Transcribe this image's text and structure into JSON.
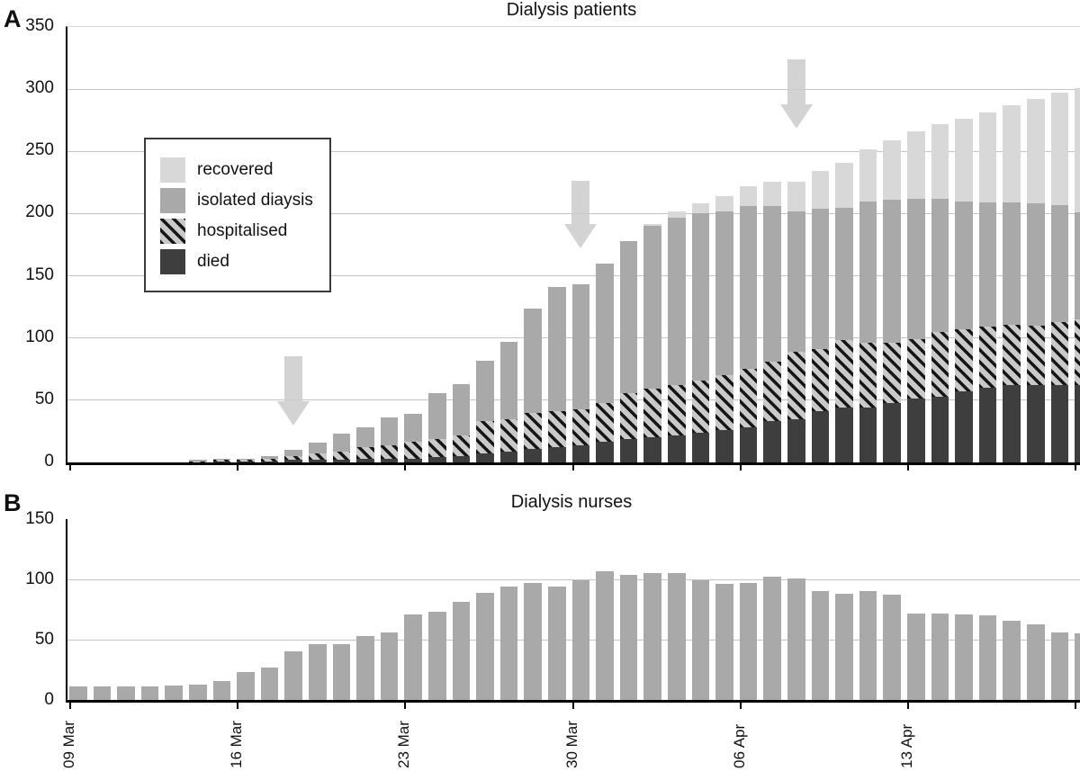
{
  "panels": {
    "a_label": "A",
    "b_label": "B"
  },
  "colors": {
    "recovered": "#d8d8d8",
    "isolated": "#a9a9a9",
    "hospitalised_bg": "#c9c9c9",
    "hospitalised_stripe": "#161616",
    "died": "#3e3e3e",
    "nurses_bar": "#a9a9a9",
    "arrow": "#cdcdcd",
    "gridline": "#c3c3c3",
    "axis": "#000000"
  },
  "chart_data": [
    {
      "type": "bar",
      "subtype": "stacked",
      "panel": "A",
      "title": "Dialysis patients",
      "ylim": [
        0,
        350
      ],
      "yticks": [
        0,
        50,
        100,
        150,
        200,
        250,
        300,
        350
      ],
      "grid_ticks": [
        50,
        100,
        150,
        200,
        250,
        300
      ],
      "grid": true,
      "legend_position": "upper-left-inside",
      "x": [
        "09 Mar",
        "10 Mar",
        "11 Mar",
        "12 Mar",
        "13 Mar",
        "14 Mar",
        "15 Mar",
        "16 Mar",
        "17 Mar",
        "18 Mar",
        "19 Mar",
        "20 Mar",
        "21 Mar",
        "22 Mar",
        "23 Mar",
        "24 Mar",
        "25 Mar",
        "26 Mar",
        "27 Mar",
        "28 Mar",
        "29 Mar",
        "30 Mar",
        "31 Mar",
        "01 Apr",
        "02 Apr",
        "03 Apr",
        "04 Apr",
        "05 Apr",
        "06 Apr",
        "07 Apr",
        "08 Apr",
        "09 Apr",
        "10 Apr",
        "11 Apr",
        "12 Apr",
        "13 Apr",
        "14 Apr",
        "15 Apr",
        "16 Apr",
        "17 Apr",
        "18 Apr",
        "19 Apr",
        "20 Apr"
      ],
      "x_tick_indices": [
        0,
        7,
        14,
        21,
        28,
        35,
        42
      ],
      "x_tick_labels": [
        "09 Mar",
        "16 Mar",
        "23 Mar",
        "30 Mar",
        "06 Apr",
        "13 Apr",
        ""
      ],
      "series": [
        {
          "name": "died",
          "style": "died",
          "values": [
            0,
            0,
            0,
            0,
            0,
            0,
            1,
            1,
            1,
            2,
            2,
            2,
            3,
            3,
            3,
            4,
            5,
            7,
            9,
            11,
            12,
            14,
            17,
            19,
            20,
            22,
            24,
            26,
            28,
            33,
            35,
            41,
            44,
            44,
            48,
            51,
            53,
            57,
            60,
            62,
            62,
            62,
            62
          ]
        },
        {
          "name": "hospitalised",
          "style": "hospitalised",
          "values": [
            0,
            0,
            0,
            0,
            0,
            1,
            1,
            1,
            2,
            3,
            5,
            7,
            9,
            11,
            14,
            15,
            17,
            26,
            26,
            29,
            29,
            29,
            31,
            37,
            39,
            40,
            42,
            44,
            47,
            48,
            54,
            50,
            54,
            52,
            48,
            48,
            52,
            50,
            49,
            49,
            48,
            51,
            53
          ]
        },
        {
          "name": "isolated diaysis",
          "style": "isolated",
          "values": [
            0,
            0,
            0,
            0,
            0,
            1,
            1,
            1,
            2,
            5,
            9,
            14,
            16,
            22,
            22,
            37,
            41,
            49,
            62,
            84,
            100,
            100,
            112,
            122,
            131,
            135,
            134,
            132,
            131,
            125,
            113,
            113,
            107,
            114,
            115,
            113,
            107,
            103,
            100,
            98,
            98,
            94,
            86
          ]
        },
        {
          "name": "recovered",
          "style": "recovered",
          "values": [
            0,
            0,
            0,
            0,
            0,
            0,
            0,
            0,
            0,
            0,
            0,
            0,
            0,
            0,
            0,
            0,
            0,
            0,
            0,
            0,
            0,
            0,
            0,
            0,
            2,
            5,
            8,
            12,
            16,
            20,
            24,
            30,
            36,
            42,
            48,
            54,
            60,
            66,
            72,
            78,
            84,
            90,
            100
          ]
        }
      ],
      "annotations": [
        {
          "shape": "down-arrow",
          "day_index": 9,
          "top_value": 85,
          "tip_value": 30
        },
        {
          "shape": "down-arrow",
          "day_index": 21,
          "top_value": 226,
          "tip_value": 172
        },
        {
          "shape": "down-arrow",
          "day_index": 30,
          "top_value": 324,
          "tip_value": 268
        }
      ]
    },
    {
      "type": "bar",
      "subtype": "single",
      "panel": "B",
      "title": "Dialysis nurses",
      "ylim": [
        0,
        150
      ],
      "yticks": [
        0,
        50,
        100,
        150
      ],
      "grid_ticks": [
        50,
        100
      ],
      "grid": true,
      "x_tick_indices": [
        0,
        7,
        14,
        21,
        28,
        35,
        42
      ],
      "x_tick_labels": [
        "09 Mar",
        "16 Mar",
        "23 Mar",
        "30 Mar",
        "06 Apr",
        "13 Apr",
        ""
      ],
      "series": [
        {
          "name": "dialysis nurses",
          "style": "isolated",
          "values": [
            11,
            11,
            11,
            11,
            12,
            13,
            16,
            23,
            27,
            40,
            46,
            46,
            53,
            56,
            71,
            73,
            81,
            89,
            94,
            97,
            94,
            99,
            107,
            104,
            105,
            105,
            99,
            96,
            97,
            102,
            101,
            90,
            88,
            90,
            87,
            72,
            72,
            71,
            70,
            66,
            63,
            56,
            55
          ]
        }
      ]
    }
  ],
  "legend": {
    "items": [
      {
        "label": "recovered",
        "style": "recovered"
      },
      {
        "label": "isolated diaysis",
        "style": "isolated"
      },
      {
        "label": "hospitalised",
        "style": "hospitalised"
      },
      {
        "label": "died",
        "style": "died"
      }
    ]
  }
}
